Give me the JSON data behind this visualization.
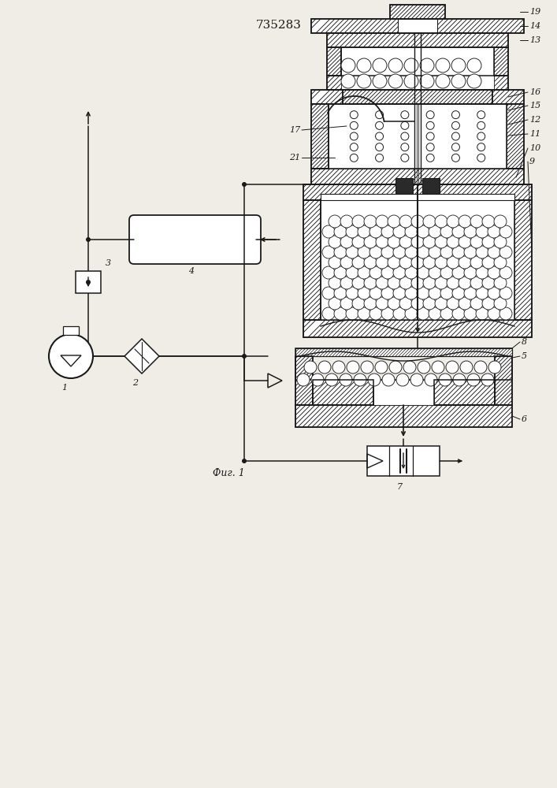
{
  "title": "735283",
  "caption": "Фиг. 1",
  "bg_color": "#f0ede6",
  "line_color": "#1a1a1a",
  "title_fontsize": 11,
  "caption_fontsize": 9,
  "label_fontsize": 8
}
